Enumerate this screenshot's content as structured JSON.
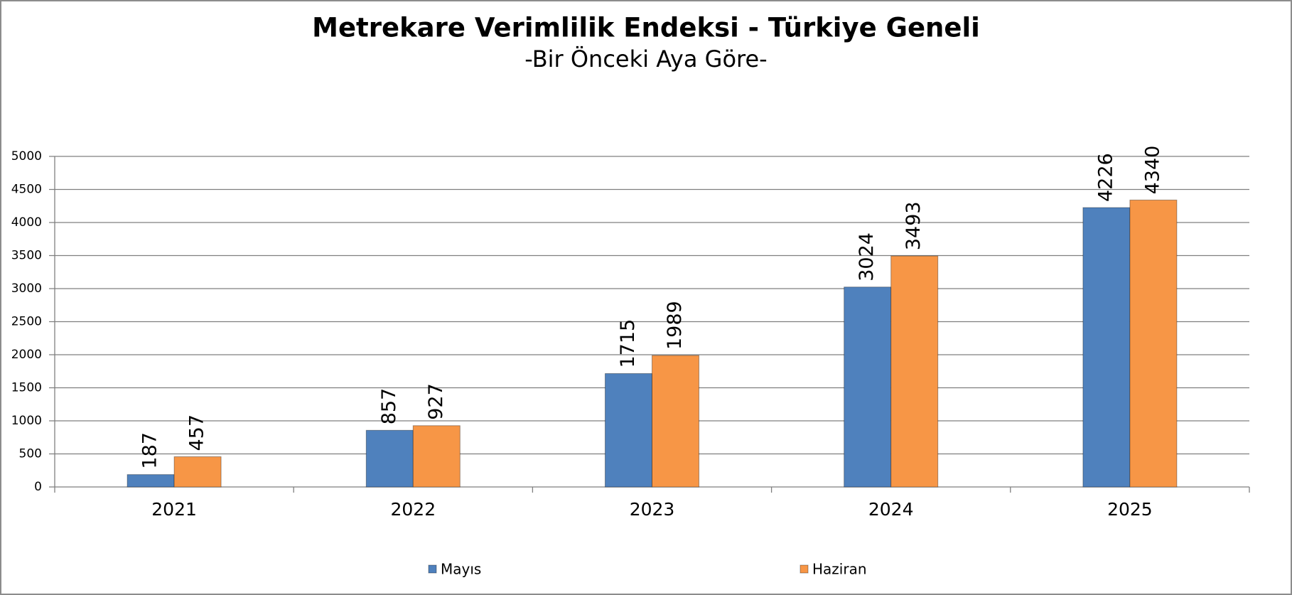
{
  "chart_data": {
    "type": "bar",
    "title": "Metrekare Verimlilik Endeksi - Türkiye Geneli",
    "subtitle": "-Bir Önceki Aya Göre-",
    "categories": [
      "2021",
      "2022",
      "2023",
      "2024",
      "2025"
    ],
    "series": [
      {
        "name": "Mayıs",
        "color": "#4f81bd",
        "values": [
          187,
          857,
          1715,
          3024,
          4226
        ]
      },
      {
        "name": "Haziran",
        "color": "#f79646",
        "values": [
          457,
          927,
          1989,
          3493,
          4340
        ]
      }
    ],
    "ylim": [
      0,
      5000
    ],
    "yticks": [
      0,
      500,
      1000,
      1500,
      2000,
      2500,
      3000,
      3500,
      4000,
      4500,
      5000
    ],
    "grid": true,
    "legend": "bottom"
  }
}
